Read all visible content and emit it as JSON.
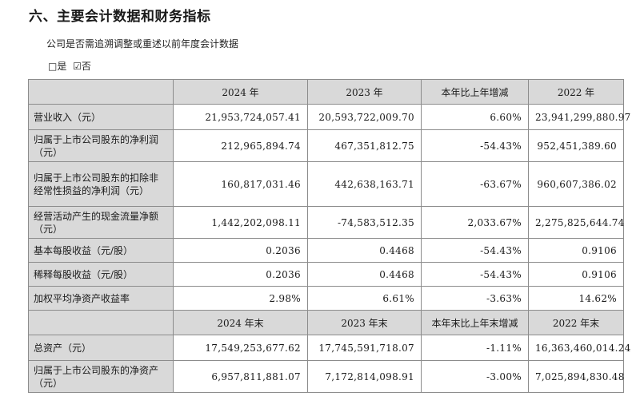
{
  "heading": "六、主要会计数据和财务指标",
  "question": "公司是否需追溯调整或重述以前年度会计数据",
  "answers": {
    "yes": "□是",
    "no": "☑否"
  },
  "table1": {
    "headers": [
      "",
      "2024 年",
      "2023 年",
      "本年比上年增减",
      "2022 年"
    ],
    "rows": [
      {
        "label": "营业收入（元）",
        "v": [
          "21,953,724,057.41",
          "20,593,722,009.70",
          "6.60%",
          "23,941,299,880.97"
        ]
      },
      {
        "label": "归属于上市公司股东的净利润（元）",
        "v": [
          "212,965,894.74",
          "467,351,812.75",
          "-54.43%",
          "952,451,389.60"
        ]
      },
      {
        "label": "归属于上市公司股东的扣除非经常性损益的净利润（元）",
        "v": [
          "160,817,031.46",
          "442,638,163.71",
          "-63.67%",
          "960,607,386.02"
        ]
      },
      {
        "label": "经营活动产生的现金流量净额（元）",
        "v": [
          "1,442,202,098.11",
          "-74,583,512.35",
          "2,033.67%",
          "2,275,825,644.74"
        ]
      },
      {
        "label": "基本每股收益（元/股）",
        "v": [
          "0.2036",
          "0.4468",
          "-54.43%",
          "0.9106"
        ]
      },
      {
        "label": "稀释每股收益（元/股）",
        "v": [
          "0.2036",
          "0.4468",
          "-54.43%",
          "0.9106"
        ]
      },
      {
        "label": "加权平均净资产收益率",
        "v": [
          "2.98%",
          "6.61%",
          "-3.63%",
          "14.62%"
        ]
      }
    ]
  },
  "table2": {
    "headers": [
      "",
      "2024 年末",
      "2023 年末",
      "本年末比上年末增减",
      "2022 年末"
    ],
    "rows": [
      {
        "label": "总资产（元）",
        "v": [
          "17,549,253,677.62",
          "17,745,591,718.07",
          "-1.11%",
          "16,363,460,014.24"
        ]
      },
      {
        "label": "归属于上市公司股东的净资产（元）",
        "v": [
          "6,957,811,881.07",
          "7,172,814,098.91",
          "-3.00%",
          "7,025,894,830.48"
        ]
      }
    ]
  }
}
